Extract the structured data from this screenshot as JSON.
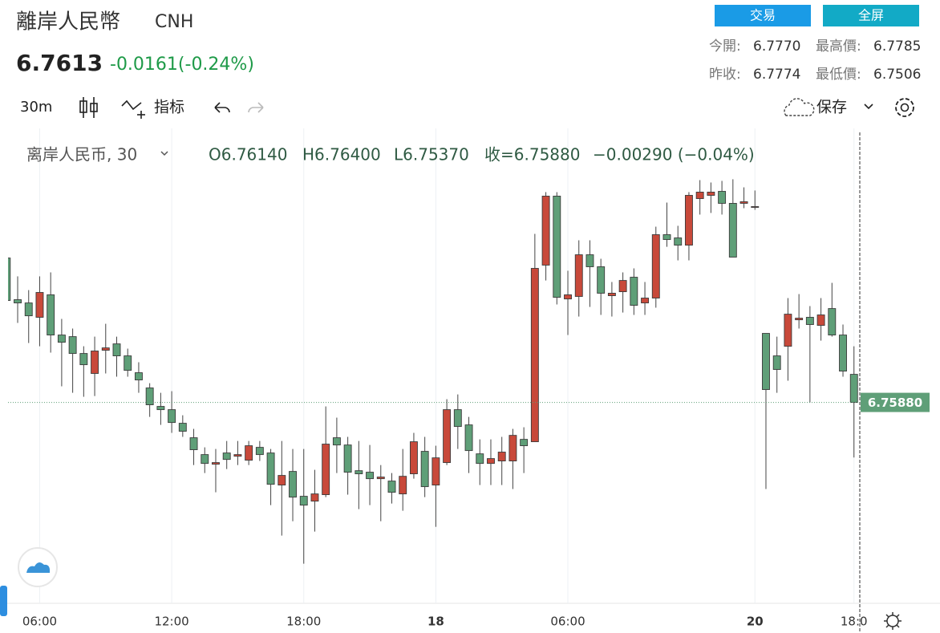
{
  "header": {
    "title": "離岸人民幣",
    "symbol": "CNH",
    "price": "6.7613",
    "change": "-0.0161(-0.24%)",
    "buttons": [
      "交易",
      "全屏"
    ],
    "stats": [
      {
        "label": "今開:",
        "value": "6.7770"
      },
      {
        "label": "最高價:",
        "value": "6.7785"
      },
      {
        "label": "昨收:",
        "value": "6.7774"
      },
      {
        "label": "最低價:",
        "value": "6.7506"
      }
    ]
  },
  "toolbar": {
    "interval": "30m",
    "indicators": "指标",
    "save": "保存"
  },
  "chart_data": {
    "type": "candlestick",
    "legend_title": "离岸人民币, 30",
    "ohlc_legend": [
      "O6.76140",
      "H6.76400",
      "L6.75370",
      "收=6.75880",
      "−0.00290 (−0.04%)"
    ],
    "categories": [
      null,
      null,
      null,
      "06:00",
      null,
      null,
      null,
      null,
      null,
      null,
      null,
      null,
      null,
      null,
      null,
      "12:00",
      null,
      null,
      null,
      null,
      null,
      null,
      null,
      null,
      null,
      null,
      null,
      "18:00",
      null,
      null,
      null,
      null,
      null,
      null,
      null,
      null,
      null,
      null,
      null,
      "18",
      null,
      null,
      null,
      null,
      null,
      null,
      null,
      null,
      null,
      null,
      null,
      "06:00",
      null,
      null,
      null,
      null,
      null,
      null,
      null,
      null,
      null,
      null,
      null,
      null,
      null,
      null,
      null,
      null,
      "20",
      null,
      null,
      null,
      null,
      null,
      null,
      null,
      null,
      "18:0"
    ],
    "open": [
      6.77217,
      6.76831,
      6.76801,
      6.76668,
      6.76876,
      6.76504,
      6.76489,
      6.76333,
      6.76148,
      6.76363,
      6.76422,
      6.76311,
      6.76155,
      6.76014,
      6.75843,
      6.75813,
      6.75687,
      6.75553,
      6.75397,
      6.75308,
      6.75412,
      6.75382,
      6.75345,
      6.75464,
      6.75412,
      6.75115,
      6.75241,
      6.75011,
      6.74966,
      6.75026,
      6.75553,
      6.75486,
      6.75248,
      6.75234,
      6.75174,
      6.75152,
      6.75033,
      6.75219,
      6.75427,
      6.75115,
      6.75323,
      6.75813,
      6.75672,
      6.75404,
      6.75315,
      6.75338,
      6.75338,
      6.75538,
      6.75516,
      6.77151,
      6.7779,
      6.76838,
      6.76861,
      6.77247,
      6.77136,
      6.76868,
      6.76905,
      6.77039,
      6.76801,
      6.76846,
      6.77433,
      6.77403,
      6.77336,
      6.77767,
      6.77797,
      6.77834,
      6.77723,
      6.77723,
      6.77686,
      6.76519,
      6.76311,
      6.764,
      6.76645,
      6.76668,
      6.76593,
      6.76749,
      6.76504,
      6.7614
    ],
    "high": [
      6.77217,
      6.77047,
      6.7692,
      6.77047,
      6.77084,
      6.76653,
      6.76564,
      6.764,
      6.76489,
      6.76608,
      6.76489,
      6.76378,
      6.76252,
      6.76058,
      6.75969,
      6.75984,
      6.75761,
      6.75635,
      6.75464,
      6.75449,
      6.75523,
      6.75523,
      6.75523,
      6.75523,
      6.75449,
      6.75523,
      6.75449,
      6.75449,
      6.75256,
      6.75843,
      6.75739,
      6.75561,
      6.75523,
      6.75486,
      6.753,
      6.75226,
      6.75449,
      6.75598,
      6.75561,
      6.75479,
      6.7591,
      6.75954,
      6.75746,
      6.75538,
      6.75538,
      6.75561,
      6.75635,
      6.7565,
      6.7744,
      6.77827,
      6.77827,
      6.77099,
      6.77381,
      6.77381,
      6.7721,
      6.76995,
      6.77084,
      6.77121,
      6.76995,
      6.77507,
      6.7773,
      6.77515,
      6.77827,
      6.77938,
      6.77916,
      6.77931,
      6.77946,
      6.77871,
      6.77842,
      6.76519,
      6.76489,
      6.76846,
      6.76883,
      6.76772,
      6.76846,
      6.76987,
      6.76601,
      6.764
    ],
    "low": [
      6.76824,
      6.76616,
      6.7643,
      6.764,
      6.76341,
      6.76029,
      6.75969,
      6.75932,
      6.75939,
      6.76148,
      6.76118,
      6.76118,
      6.75969,
      6.75746,
      6.75672,
      6.75598,
      6.75561,
      6.753,
      6.75226,
      6.75048,
      6.75263,
      6.753,
      6.753,
      6.75338,
      6.74929,
      6.74647,
      6.7478,
      6.74387,
      6.74684,
      6.75003,
      6.75226,
      6.75026,
      6.74892,
      6.74929,
      6.7478,
      6.74944,
      6.74877,
      6.75174,
      6.75003,
      6.74728,
      6.753,
      6.75449,
      6.75226,
      6.75115,
      6.75115,
      6.75115,
      6.75078,
      6.75226,
      6.75516,
      6.77009,
      6.76787,
      6.76504,
      6.76675,
      6.76764,
      6.7669,
      6.76675,
      6.76712,
      6.7669,
      6.7669,
      6.76757,
      6.77321,
      6.77195,
      6.77195,
      6.77619,
      6.77634,
      6.77619,
      6.77225,
      6.77678,
      6.77663,
      6.75078,
      6.75969,
      6.76081,
      6.76564,
      6.7588,
      6.76452,
      6.76489,
      6.76118,
      6.7537
    ],
    "close": [
      6.76824,
      6.76801,
      6.76682,
      6.76898,
      6.76504,
      6.76437,
      6.76333,
      6.76229,
      6.76356,
      6.76385,
      6.76311,
      6.76177,
      6.76088,
      6.75858,
      6.75813,
      6.75694,
      6.75613,
      6.75442,
      6.75315,
      6.75323,
      6.75352,
      6.75397,
      6.75479,
      6.75397,
      6.75122,
      6.75204,
      6.75003,
      6.74929,
      6.75033,
      6.75494,
      6.75486,
      6.75234,
      6.75219,
      6.75174,
      6.75189,
      6.75048,
      6.75196,
      6.75516,
      6.751,
      6.75367,
      6.75813,
      6.75657,
      6.75434,
      6.75315,
      6.7536,
      6.7542,
      6.75575,
      6.75479,
      6.77121,
      6.7779,
      6.76853,
      6.76876,
      6.77247,
      6.77136,
      6.76891,
      6.76891,
      6.77009,
      6.76779,
      6.76846,
      6.77433,
      6.77388,
      6.77336,
      6.77797,
      6.77827,
      6.77827,
      6.77723,
      6.77225,
      6.77738,
      6.77693,
      6.75999,
      6.76185,
      6.76697,
      6.7666,
      6.76601,
      6.7669,
      6.76504,
      6.7617,
      6.7588
    ],
    "up_color": "#c8493a",
    "down_color": "#5f9f78",
    "last_price": {
      "value": 6.7588,
      "label": "6.75880"
    },
    "ylim": [
      6.7402,
      6.7838
    ],
    "grid": true
  }
}
